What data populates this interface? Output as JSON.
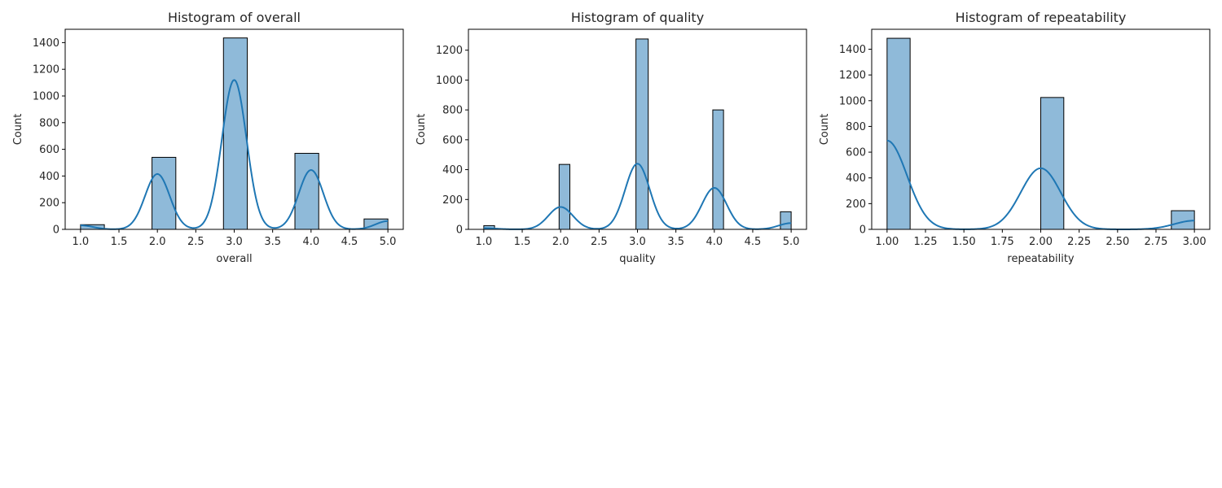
{
  "colors": {
    "bar_fill": "#8fbad9",
    "bar_edge": "#000000",
    "kde_line": "#1f77b4",
    "axes": "#000000",
    "background": "#ffffff"
  },
  "chart_data": [
    {
      "type": "bar",
      "title": "Histogram of overall",
      "xlabel": "overall",
      "ylabel": "Count",
      "xlim": [
        0.8,
        5.2
      ],
      "ylim": [
        0,
        1500
      ],
      "xticks": [
        1.0,
        1.5,
        2.0,
        2.5,
        3.0,
        3.5,
        4.0,
        4.5,
        5.0
      ],
      "xtick_labels": [
        "1.0",
        "1.5",
        "2.0",
        "2.5",
        "3.0",
        "3.5",
        "4.0",
        "4.5",
        "5.0"
      ],
      "yticks": [
        0,
        200,
        400,
        600,
        800,
        1000,
        1200,
        1400
      ],
      "ytick_labels": [
        "0",
        "200",
        "400",
        "600",
        "800",
        "1000",
        "1200",
        "1400"
      ],
      "grid": false,
      "bins": [
        {
          "x0": 1.0,
          "x1": 1.31,
          "count": 35
        },
        {
          "x0": 1.93,
          "x1": 2.24,
          "count": 540
        },
        {
          "x0": 2.86,
          "x1": 3.17,
          "count": 1435
        },
        {
          "x0": 3.79,
          "x1": 4.1,
          "count": 570
        },
        {
          "x0": 4.69,
          "x1": 5.0,
          "count": 78
        }
      ],
      "kde": {
        "components": [
          {
            "mu": 1.0,
            "sigma": 0.16,
            "peak": 30
          },
          {
            "mu": 2.0,
            "sigma": 0.16,
            "peak": 415
          },
          {
            "mu": 3.0,
            "sigma": 0.16,
            "peak": 1120
          },
          {
            "mu": 4.0,
            "sigma": 0.16,
            "peak": 445
          },
          {
            "mu": 5.0,
            "sigma": 0.16,
            "peak": 62
          }
        ]
      }
    },
    {
      "type": "bar",
      "title": "Histogram of quality",
      "xlabel": "quality",
      "ylabel": "Count",
      "xlim": [
        0.8,
        5.2
      ],
      "ylim": [
        0,
        1340
      ],
      "xticks": [
        1.0,
        1.5,
        2.0,
        2.5,
        3.0,
        3.5,
        4.0,
        4.5,
        5.0
      ],
      "xtick_labels": [
        "1.0",
        "1.5",
        "2.0",
        "2.5",
        "3.0",
        "3.5",
        "4.0",
        "4.5",
        "5.0"
      ],
      "yticks": [
        0,
        200,
        400,
        600,
        800,
        1000,
        1200
      ],
      "ytick_labels": [
        "0",
        "200",
        "400",
        "600",
        "800",
        "1000",
        "1200"
      ],
      "grid": false,
      "bins": [
        {
          "x0": 1.0,
          "x1": 1.14,
          "count": 25
        },
        {
          "x0": 1.98,
          "x1": 2.12,
          "count": 435
        },
        {
          "x0": 2.98,
          "x1": 3.14,
          "count": 1275
        },
        {
          "x0": 3.98,
          "x1": 4.12,
          "count": 800
        },
        {
          "x0": 4.86,
          "x1": 5.0,
          "count": 118
        }
      ],
      "kde": {
        "components": [
          {
            "mu": 1.0,
            "sigma": 0.16,
            "peak": 8
          },
          {
            "mu": 2.0,
            "sigma": 0.16,
            "peak": 150
          },
          {
            "mu": 3.0,
            "sigma": 0.16,
            "peak": 440
          },
          {
            "mu": 4.0,
            "sigma": 0.16,
            "peak": 278
          },
          {
            "mu": 5.0,
            "sigma": 0.16,
            "peak": 42
          }
        ]
      }
    },
    {
      "type": "bar",
      "title": "Histogram of repeatability",
      "xlabel": "repeatability",
      "ylabel": "Count",
      "xlim": [
        0.9,
        3.1
      ],
      "ylim": [
        0,
        1555
      ],
      "xticks": [
        1.0,
        1.25,
        1.5,
        1.75,
        2.0,
        2.25,
        2.5,
        2.75,
        3.0
      ],
      "xtick_labels": [
        "1.00",
        "1.25",
        "1.50",
        "1.75",
        "2.00",
        "2.25",
        "2.50",
        "2.75",
        "3.00"
      ],
      "yticks": [
        0,
        200,
        400,
        600,
        800,
        1000,
        1200,
        1400
      ],
      "ytick_labels": [
        "0",
        "200",
        "400",
        "600",
        "800",
        "1000",
        "1200",
        "1400"
      ],
      "grid": false,
      "bins": [
        {
          "x0": 1.0,
          "x1": 1.15,
          "count": 1485
        },
        {
          "x0": 2.0,
          "x1": 2.15,
          "count": 1025
        },
        {
          "x0": 2.85,
          "x1": 3.0,
          "count": 145
        }
      ],
      "kde": {
        "components": [
          {
            "mu": 1.0,
            "sigma": 0.13,
            "peak": 690
          },
          {
            "mu": 2.0,
            "sigma": 0.13,
            "peak": 475
          },
          {
            "mu": 3.0,
            "sigma": 0.13,
            "peak": 68
          }
        ]
      }
    }
  ]
}
